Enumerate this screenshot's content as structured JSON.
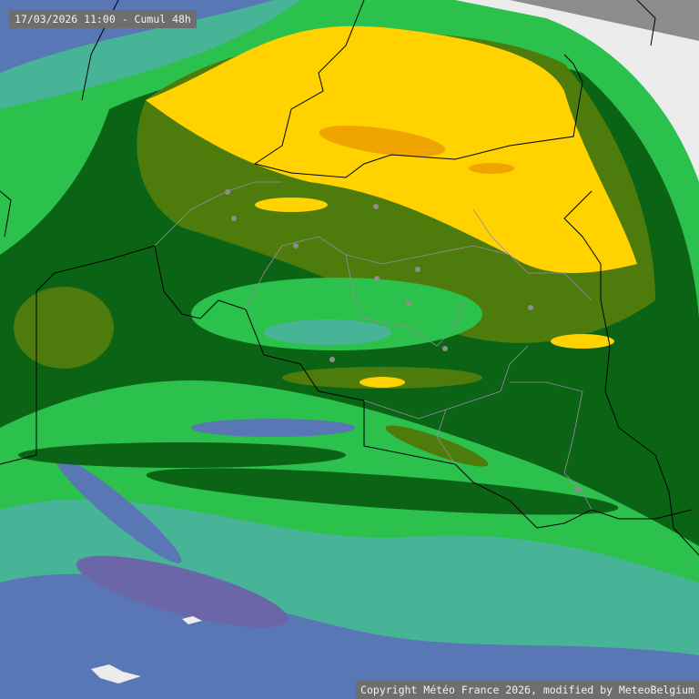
{
  "header": {
    "timestamp_label": "17/03/2026 11:00 - Cumul 48h"
  },
  "footer": {
    "copyright": "Copyright Météo France 2026, modified by MeteoBelgium"
  },
  "legend_colors": {
    "light_green": "#2cc04c",
    "dark_green": "#0b6416",
    "olive": "#4d7c0c",
    "yellow": "#ffd200",
    "orange": "#f0a400",
    "teal": "#47b497",
    "blue": "#5877b4",
    "outside_domain": "#8c8c8c",
    "no_data": "#ececec"
  },
  "map": {
    "borders_color": "#000000",
    "provinces_color": "#9a8aa0",
    "cities_color": "#8e8e8e"
  }
}
